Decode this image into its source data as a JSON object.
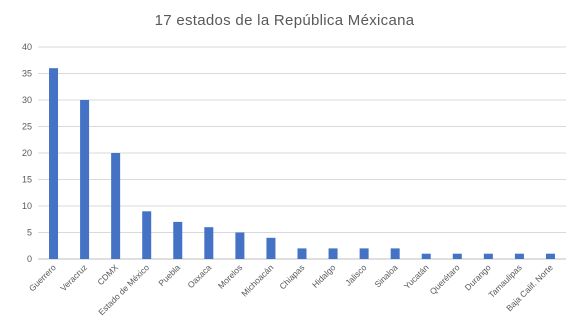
{
  "chart_data": {
    "type": "bar",
    "title": "17 estados de la República Méxicana",
    "xlabel": "",
    "ylabel": "",
    "categories": [
      "Guerrero",
      "Veracruz",
      "CDMX",
      "Estado de México",
      "Puebla",
      "Oaxaca",
      "Morelos",
      "Michoacán",
      "Chiapas",
      "Hidalgo",
      "Jalisco",
      "Sinaloa",
      "Yucatán",
      "Querétaro",
      "Durango",
      "Tamaulipas",
      "Baja Calif. Norte"
    ],
    "values": [
      36,
      30,
      20,
      9,
      7,
      6,
      5,
      4,
      2,
      2,
      2,
      2,
      1,
      1,
      1,
      1,
      1
    ],
    "ylim": [
      0,
      40
    ],
    "yticks": [
      0,
      5,
      10,
      15,
      20,
      25,
      30,
      35,
      40
    ],
    "grid": true,
    "legend": "none",
    "bar_color": "#4472C4"
  }
}
